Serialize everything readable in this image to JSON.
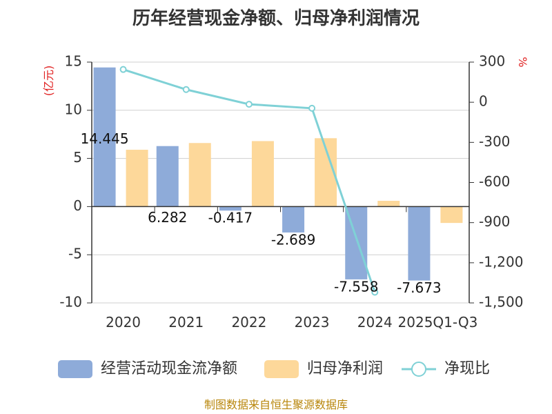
{
  "chart_data": {
    "type": "bar",
    "title": "历年经营现金净额、归母净利润情况",
    "categories": [
      "2020",
      "2021",
      "2022",
      "2023",
      "2024",
      "2025Q1-Q3"
    ],
    "series": [
      {
        "name": "经营活动现金流净额",
        "type": "bar",
        "axis": "left",
        "color": "#8eabd9",
        "values": [
          14.445,
          6.282,
          -0.417,
          -2.689,
          -7.558,
          -7.673
        ],
        "labels": [
          "14.445",
          "6.282",
          "-0.417",
          "-2.689",
          "-7.558",
          "-7.673"
        ]
      },
      {
        "name": "归母净利润",
        "type": "bar",
        "axis": "left",
        "color": "#fdd89a",
        "values": [
          5.9,
          6.6,
          6.8,
          7.1,
          0.6,
          -1.7
        ]
      },
      {
        "name": "净现比",
        "type": "line",
        "axis": "right",
        "color": "#7fd1d6",
        "values": [
          245,
          95,
          -15,
          -45,
          -1420,
          null
        ]
      }
    ],
    "y_left": {
      "unit": "(亿元)",
      "ylim": [
        -10,
        15
      ],
      "ticks": [
        "15",
        "10",
        "5",
        "0",
        "-5",
        "-10"
      ],
      "tick_values": [
        15,
        10,
        5,
        0,
        -5,
        -10
      ]
    },
    "y_right": {
      "unit": "%",
      "ylim": [
        -1500,
        300
      ],
      "ticks": [
        "300",
        "0",
        "-300",
        "-600",
        "-900",
        "-1,200",
        "-1,500"
      ],
      "tick_values": [
        300,
        0,
        -300,
        -600,
        -900,
        -1200,
        -1500
      ]
    },
    "legend_position": "bottom",
    "source": "制图数据来自恒生聚源数据库"
  }
}
